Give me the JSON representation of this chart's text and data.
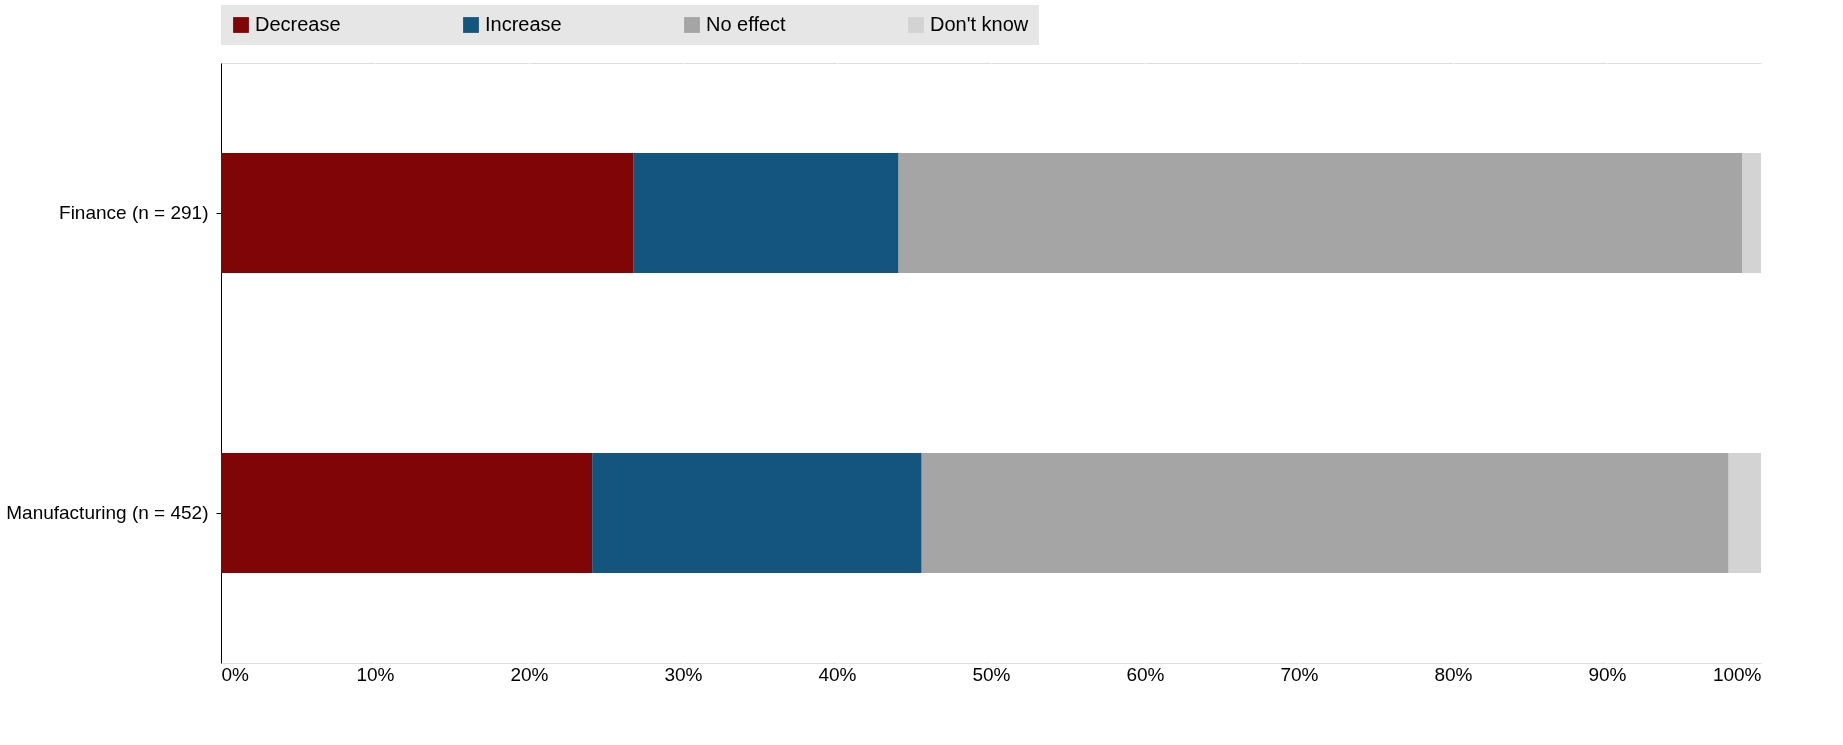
{
  "chart_data": {
    "type": "bar",
    "orientation": "horizontal",
    "stacked": true,
    "categories": [
      "Finance (n = 291)",
      "Manufacturing (n = 452)"
    ],
    "series": [
      {
        "name": "Decrease",
        "color": "#7f0506",
        "values": [
          26.8,
          24.1
        ]
      },
      {
        "name": "Increase",
        "color": "#14557f",
        "values": [
          17.2,
          21.4
        ]
      },
      {
        "name": "No effect",
        "color": "#a5a5a5",
        "values": [
          54.8,
          52.4
        ]
      },
      {
        "name": "Don't know",
        "color": "#d3d3d3",
        "values": [
          1.2,
          2.1
        ]
      }
    ],
    "xlim": [
      0,
      100
    ],
    "xticks": [
      {
        "value": 0,
        "label": "0%"
      },
      {
        "value": 10,
        "label": "10%"
      },
      {
        "value": 20,
        "label": "20%"
      },
      {
        "value": 30,
        "label": "30%"
      },
      {
        "value": 40,
        "label": "40%"
      },
      {
        "value": 50,
        "label": "50%"
      },
      {
        "value": 60,
        "label": "60%"
      },
      {
        "value": 70,
        "label": "70%"
      },
      {
        "value": 80,
        "label": "80%"
      },
      {
        "value": 90,
        "label": "90%"
      },
      {
        "value": 100,
        "label": "100%"
      }
    ],
    "grid": "x",
    "legend": "top"
  }
}
